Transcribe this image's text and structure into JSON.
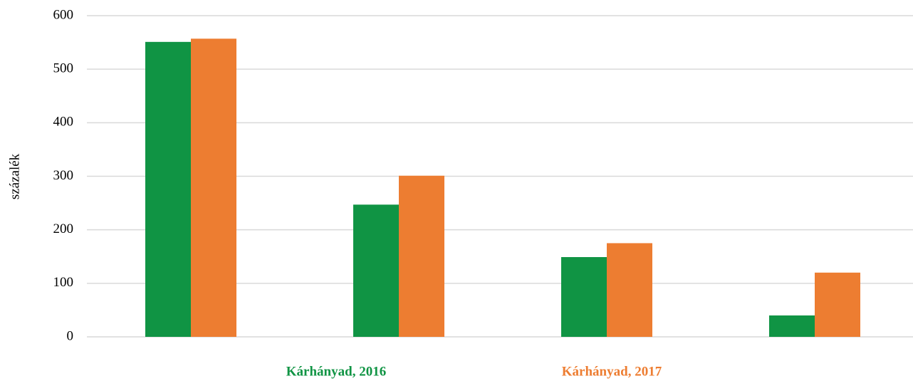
{
  "chart_data": {
    "type": "bar",
    "y_label": "százalék",
    "categories": [
      null,
      null,
      null,
      null
    ],
    "series": [
      {
        "name": "Kárhányad, 2016",
        "color": "#109444",
        "values": [
          551,
          247,
          149,
          40
        ]
      },
      {
        "name": "Kárhányad, 2017",
        "color": "#ED7D31",
        "values": [
          557,
          301,
          175,
          120
        ]
      }
    ],
    "ylim": [
      0,
      600
    ],
    "yticks": [
      0,
      100,
      200,
      300,
      400,
      500,
      600
    ],
    "grid": true,
    "legend": "bottom"
  }
}
